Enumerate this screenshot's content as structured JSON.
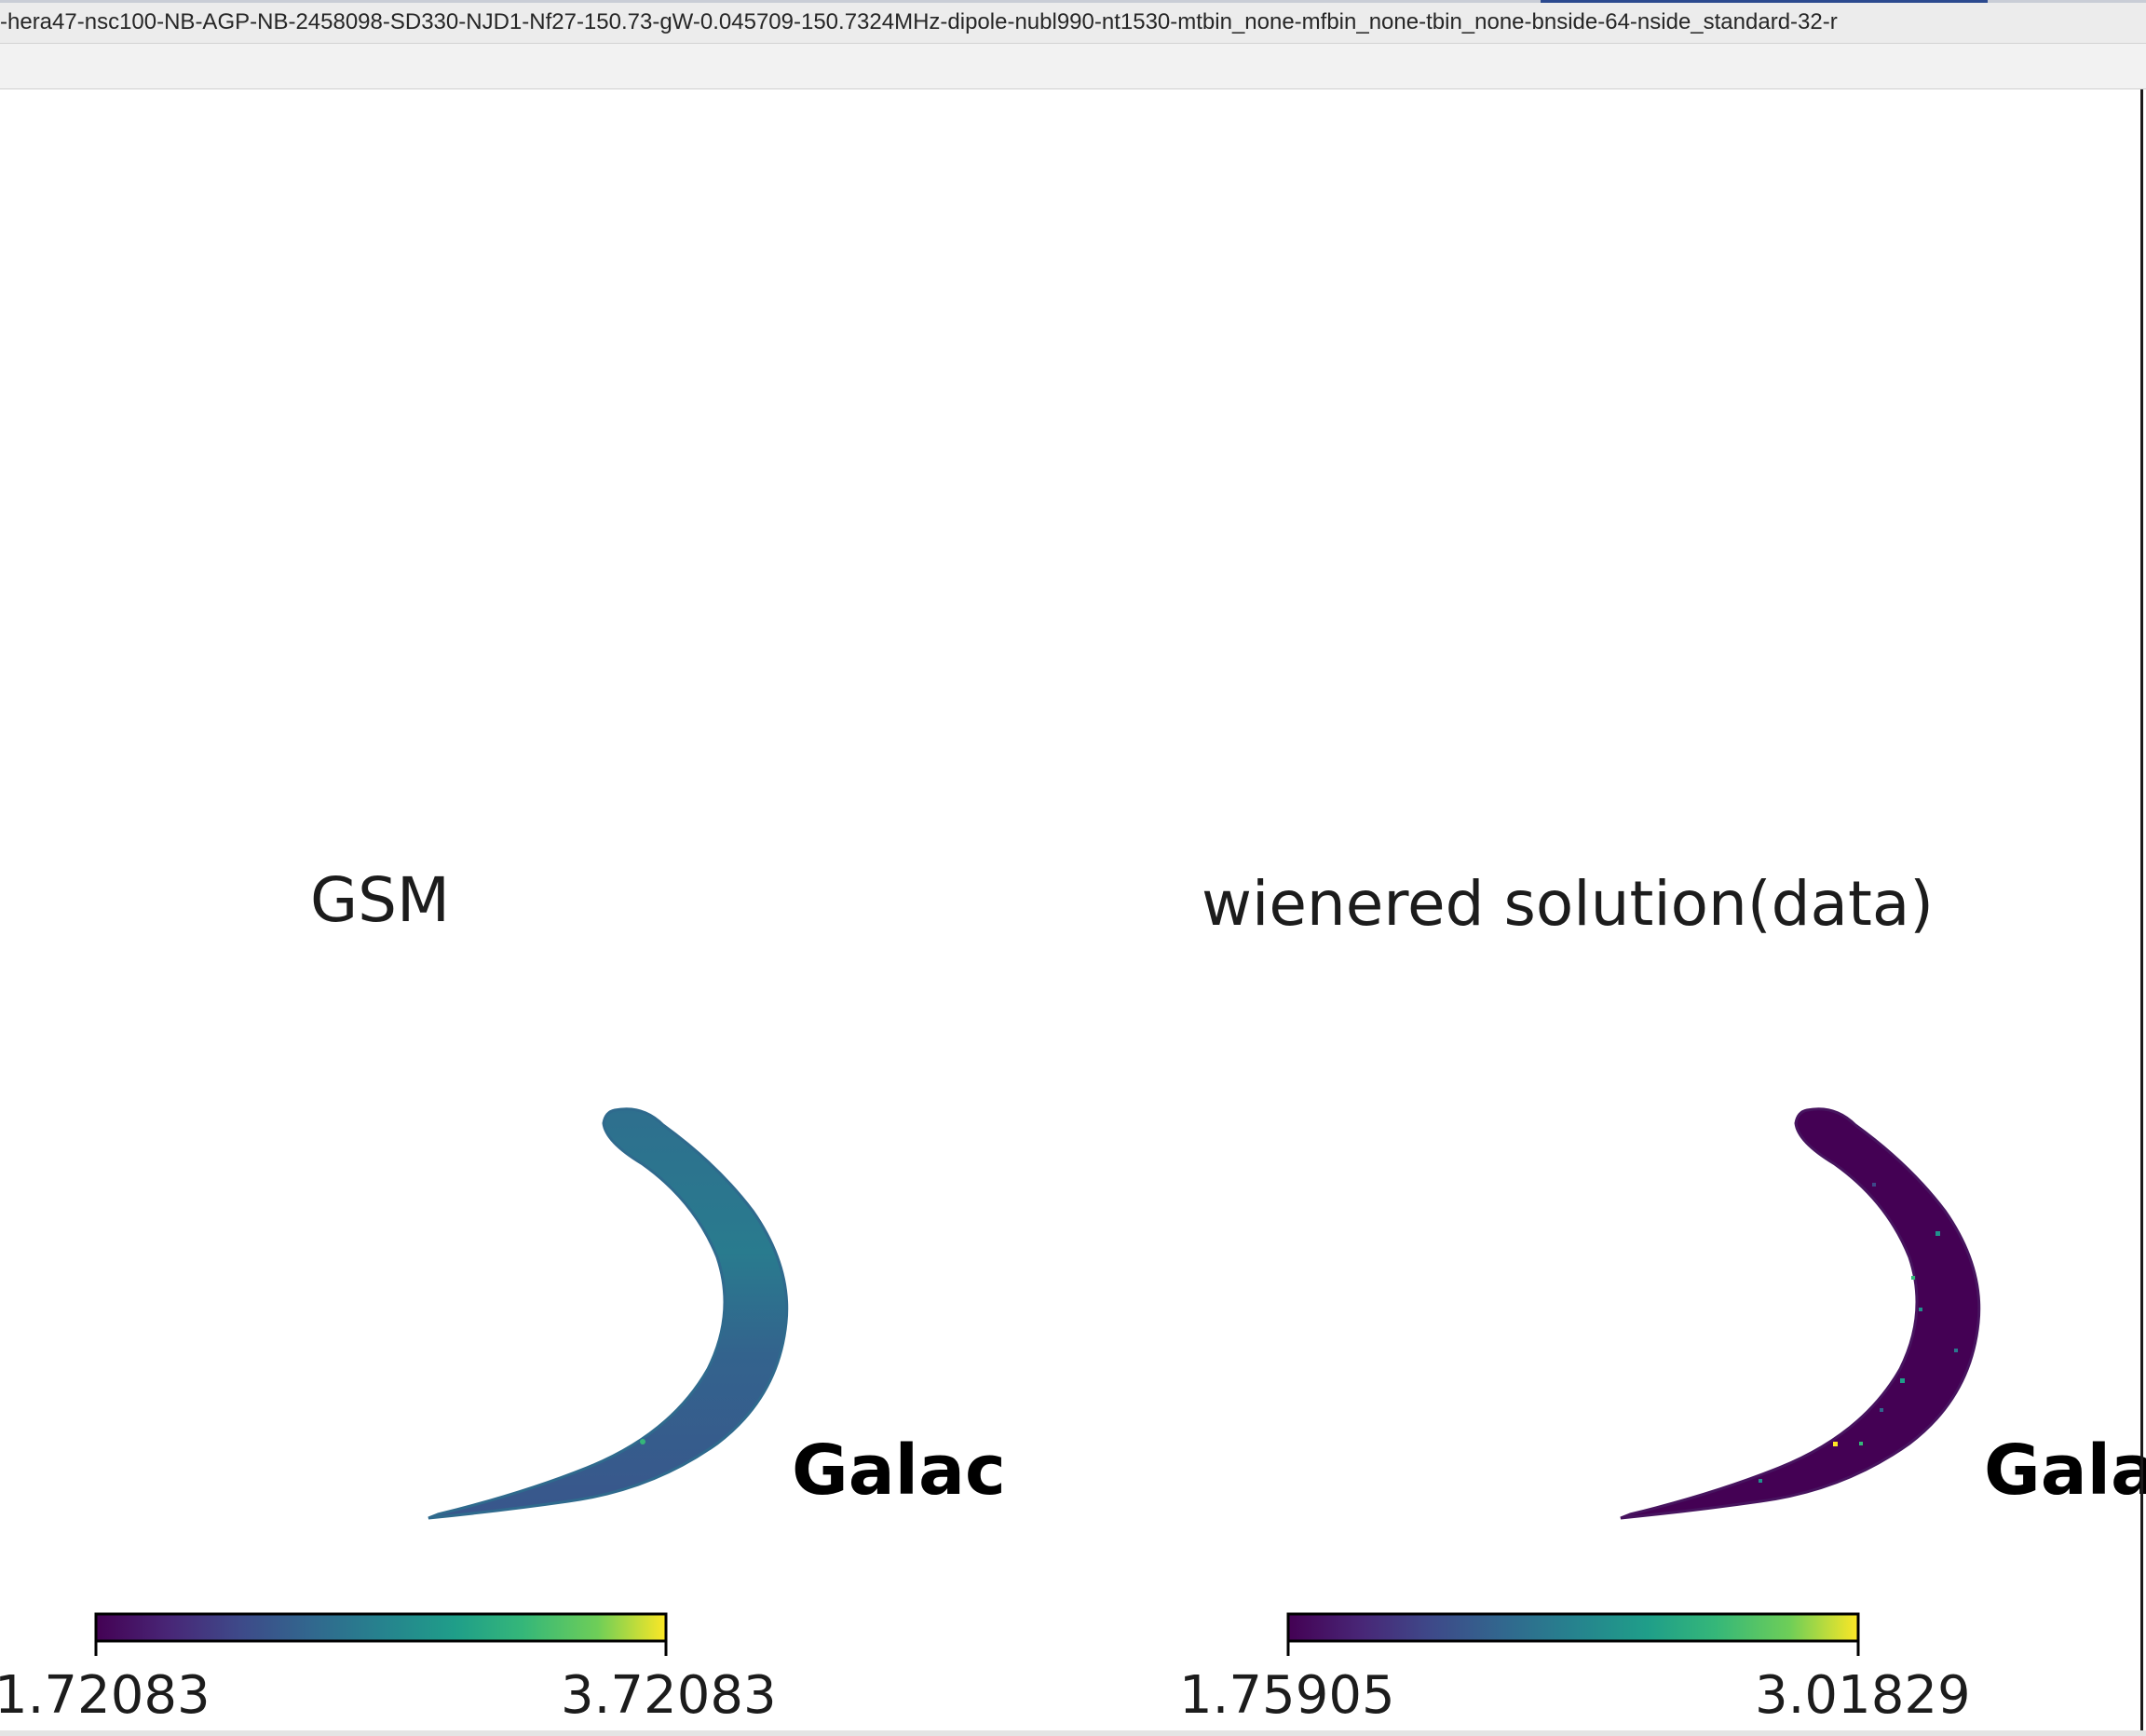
{
  "window": {
    "title": "-hera47-nsc100-NB-AGP-NB-2458098-SD330-NJD1-Nf27-150.73-gW-0.045709-150.7324MHz-dipole-nubl990-nt1530-mtbin_none-mfbin_none-tbin_none-bnside-64-nside_standard-32-r"
  },
  "colors": {
    "gsm_fill": "#36608d",
    "wiener_fill": "#440154",
    "colormap": "viridis"
  },
  "panels": [
    {
      "title": "GSM",
      "label": "Galac",
      "colorbar": {
        "min": "1.72083",
        "max": "3.72083"
      }
    },
    {
      "title": "wienered solution(data)",
      "label": "Gala",
      "colorbar": {
        "min": "1.75905",
        "max": "3.01829"
      }
    }
  ]
}
